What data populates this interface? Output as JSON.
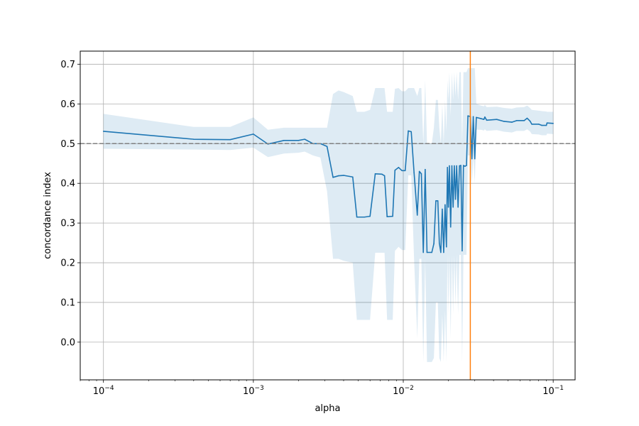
{
  "chart_data": {
    "type": "line",
    "title": "",
    "xlabel": "alpha",
    "ylabel": "concordance index",
    "xscale": "log",
    "xlim": [
      7e-05,
      0.14
    ],
    "ylim": [
      -0.095,
      0.733
    ],
    "grid": true,
    "x_ticks": [
      {
        "value": 0.0001,
        "base": "10",
        "exp": "−4"
      },
      {
        "value": 0.001,
        "base": "10",
        "exp": "−3"
      },
      {
        "value": 0.01,
        "base": "10",
        "exp": "−2"
      },
      {
        "value": 0.1,
        "base": "10",
        "exp": "−1"
      }
    ],
    "y_ticks": [
      {
        "value": 0.0,
        "label": "0.0"
      },
      {
        "value": 0.1,
        "label": "0.1"
      },
      {
        "value": 0.2,
        "label": "0.2"
      },
      {
        "value": 0.3,
        "label": "0.3"
      },
      {
        "value": 0.4,
        "label": "0.4"
      },
      {
        "value": 0.5,
        "label": "0.5"
      },
      {
        "value": 0.6,
        "label": "0.6"
      },
      {
        "value": 0.7,
        "label": "0.7"
      }
    ],
    "reference_lines": [
      {
        "orientation": "horizontal",
        "value": 0.5,
        "style": "dashed",
        "color": "#808080"
      },
      {
        "orientation": "vertical",
        "value": 0.028,
        "style": "solid",
        "color": "#ff7f0e"
      }
    ],
    "series": [
      {
        "color": "#1f77b4",
        "band_color": "#1f77b4",
        "points": [
          {
            "x": 0.0001,
            "y": 0.531,
            "lo": 0.487,
            "hi": 0.575
          },
          {
            "x": 0.0004,
            "y": 0.511,
            "lo": 0.485,
            "hi": 0.542
          },
          {
            "x": 0.0007,
            "y": 0.51,
            "lo": 0.484,
            "hi": 0.542
          },
          {
            "x": 0.001,
            "y": 0.524,
            "lo": 0.49,
            "hi": 0.566
          },
          {
            "x": 0.00125,
            "y": 0.499,
            "lo": 0.466,
            "hi": 0.535
          },
          {
            "x": 0.0016,
            "y": 0.508,
            "lo": 0.475,
            "hi": 0.54
          },
          {
            "x": 0.002,
            "y": 0.508,
            "lo": 0.477,
            "hi": 0.54
          },
          {
            "x": 0.0022,
            "y": 0.511,
            "lo": 0.48,
            "hi": 0.54
          },
          {
            "x": 0.0025,
            "y": 0.5,
            "lo": 0.47,
            "hi": 0.54
          },
          {
            "x": 0.0028,
            "y": 0.5,
            "lo": 0.465,
            "hi": 0.54
          },
          {
            "x": 0.0031,
            "y": 0.493,
            "lo": 0.38,
            "hi": 0.54
          },
          {
            "x": 0.0034,
            "y": 0.415,
            "lo": 0.21,
            "hi": 0.625
          },
          {
            "x": 0.0037,
            "y": 0.419,
            "lo": 0.21,
            "hi": 0.634
          },
          {
            "x": 0.004,
            "y": 0.42,
            "lo": 0.205,
            "hi": 0.63
          },
          {
            "x": 0.0046,
            "y": 0.416,
            "lo": 0.2,
            "hi": 0.62
          },
          {
            "x": 0.0049,
            "y": 0.315,
            "lo": 0.056,
            "hi": 0.58
          },
          {
            "x": 0.0055,
            "y": 0.315,
            "lo": 0.056,
            "hi": 0.58
          },
          {
            "x": 0.006,
            "y": 0.317,
            "lo": 0.056,
            "hi": 0.585
          },
          {
            "x": 0.0065,
            "y": 0.424,
            "lo": 0.225,
            "hi": 0.64
          },
          {
            "x": 0.0072,
            "y": 0.423,
            "lo": 0.225,
            "hi": 0.64
          },
          {
            "x": 0.0075,
            "y": 0.419,
            "lo": 0.225,
            "hi": 0.64
          },
          {
            "x": 0.0078,
            "y": 0.316,
            "lo": 0.056,
            "hi": 0.58
          },
          {
            "x": 0.0085,
            "y": 0.317,
            "lo": 0.056,
            "hi": 0.58
          },
          {
            "x": 0.0088,
            "y": 0.433,
            "lo": 0.23,
            "hi": 0.638
          },
          {
            "x": 0.0093,
            "y": 0.44,
            "lo": 0.24,
            "hi": 0.64
          },
          {
            "x": 0.0098,
            "y": 0.432,
            "lo": 0.232,
            "hi": 0.632
          },
          {
            "x": 0.0103,
            "y": 0.432,
            "lo": 0.232,
            "hi": 0.632
          },
          {
            "x": 0.0108,
            "y": 0.532,
            "lo": 0.42,
            "hi": 0.64
          },
          {
            "x": 0.0113,
            "y": 0.53,
            "lo": 0.42,
            "hi": 0.64
          },
          {
            "x": 0.0118,
            "y": 0.427,
            "lo": 0.21,
            "hi": 0.64
          },
          {
            "x": 0.0124,
            "y": 0.32,
            "lo": 0.01,
            "hi": 0.62
          },
          {
            "x": 0.0128,
            "y": 0.43,
            "lo": 0.21,
            "hi": 0.64
          },
          {
            "x": 0.0132,
            "y": 0.424,
            "lo": 0.21,
            "hi": 0.64
          },
          {
            "x": 0.0136,
            "y": 0.226,
            "lo": -0.05,
            "hi": 0.5
          },
          {
            "x": 0.014,
            "y": 0.435,
            "lo": 0.21,
            "hi": 0.66
          },
          {
            "x": 0.0144,
            "y": 0.226,
            "lo": -0.05,
            "hi": 0.5
          },
          {
            "x": 0.0155,
            "y": 0.226,
            "lo": -0.05,
            "hi": 0.5
          },
          {
            "x": 0.016,
            "y": 0.248,
            "lo": -0.04,
            "hi": 0.54
          },
          {
            "x": 0.0165,
            "y": 0.356,
            "lo": 0.1,
            "hi": 0.61
          },
          {
            "x": 0.017,
            "y": 0.356,
            "lo": 0.1,
            "hi": 0.61
          },
          {
            "x": 0.0174,
            "y": 0.249,
            "lo": -0.04,
            "hi": 0.54
          },
          {
            "x": 0.0178,
            "y": 0.226,
            "lo": -0.05,
            "hi": 0.5
          },
          {
            "x": 0.0182,
            "y": 0.335,
            "lo": 0.07,
            "hi": 0.6
          },
          {
            "x": 0.0186,
            "y": 0.226,
            "lo": -0.05,
            "hi": 0.5
          },
          {
            "x": 0.019,
            "y": 0.346,
            "lo": 0.08,
            "hi": 0.61
          },
          {
            "x": 0.0194,
            "y": 0.24,
            "lo": -0.05,
            "hi": 0.53
          },
          {
            "x": 0.0197,
            "y": 0.44,
            "lo": 0.22,
            "hi": 0.66
          },
          {
            "x": 0.02,
            "y": 0.34,
            "lo": 0.07,
            "hi": 0.61
          },
          {
            "x": 0.0203,
            "y": 0.444,
            "lo": 0.22,
            "hi": 0.68
          },
          {
            "x": 0.0207,
            "y": 0.29,
            "lo": 0.01,
            "hi": 0.57
          },
          {
            "x": 0.0211,
            "y": 0.444,
            "lo": 0.22,
            "hi": 0.68
          },
          {
            "x": 0.0215,
            "y": 0.34,
            "lo": 0.07,
            "hi": 0.61
          },
          {
            "x": 0.0219,
            "y": 0.444,
            "lo": 0.22,
            "hi": 0.68
          },
          {
            "x": 0.0223,
            "y": 0.36,
            "lo": 0.09,
            "hi": 0.62
          },
          {
            "x": 0.0227,
            "y": 0.444,
            "lo": 0.22,
            "hi": 0.68
          },
          {
            "x": 0.0232,
            "y": 0.34,
            "lo": 0.07,
            "hi": 0.61
          },
          {
            "x": 0.0237,
            "y": 0.444,
            "lo": 0.22,
            "hi": 0.68
          },
          {
            "x": 0.0242,
            "y": 0.445,
            "lo": 0.22,
            "hi": 0.68
          },
          {
            "x": 0.0247,
            "y": 0.23,
            "lo": -0.05,
            "hi": 0.5
          },
          {
            "x": 0.0252,
            "y": 0.445,
            "lo": 0.22,
            "hi": 0.68
          },
          {
            "x": 0.0258,
            "y": 0.443,
            "lo": 0.22,
            "hi": 0.68
          },
          {
            "x": 0.0264,
            "y": 0.445,
            "lo": 0.22,
            "hi": 0.68
          },
          {
            "x": 0.027,
            "y": 0.57,
            "lo": 0.47,
            "hi": 0.69
          },
          {
            "x": 0.028,
            "y": 0.568,
            "lo": 0.47,
            "hi": 0.69
          },
          {
            "x": 0.0287,
            "y": 0.462,
            "lo": 0.4,
            "hi": 0.69
          },
          {
            "x": 0.0293,
            "y": 0.568,
            "lo": 0.47,
            "hi": 0.69
          },
          {
            "x": 0.03,
            "y": 0.462,
            "lo": 0.4,
            "hi": 0.69
          },
          {
            "x": 0.0307,
            "y": 0.566,
            "lo": 0.535,
            "hi": 0.6
          },
          {
            "x": 0.033,
            "y": 0.563,
            "lo": 0.535,
            "hi": 0.596
          },
          {
            "x": 0.0345,
            "y": 0.561,
            "lo": 0.533,
            "hi": 0.594
          },
          {
            "x": 0.035,
            "y": 0.567,
            "lo": 0.536,
            "hi": 0.598
          },
          {
            "x": 0.036,
            "y": 0.559,
            "lo": 0.532,
            "hi": 0.592
          },
          {
            "x": 0.042,
            "y": 0.561,
            "lo": 0.534,
            "hi": 0.593
          },
          {
            "x": 0.047,
            "y": 0.556,
            "lo": 0.53,
            "hi": 0.59
          },
          {
            "x": 0.053,
            "y": 0.554,
            "lo": 0.528,
            "hi": 0.588
          },
          {
            "x": 0.057,
            "y": 0.558,
            "lo": 0.532,
            "hi": 0.591
          },
          {
            "x": 0.064,
            "y": 0.558,
            "lo": 0.532,
            "hi": 0.592
          },
          {
            "x": 0.067,
            "y": 0.564,
            "lo": 0.536,
            "hi": 0.596
          },
          {
            "x": 0.07,
            "y": 0.557,
            "lo": 0.531,
            "hi": 0.59
          },
          {
            "x": 0.072,
            "y": 0.549,
            "lo": 0.524,
            "hi": 0.585
          },
          {
            "x": 0.08,
            "y": 0.549,
            "lo": 0.523,
            "hi": 0.583
          },
          {
            "x": 0.084,
            "y": 0.546,
            "lo": 0.521,
            "hi": 0.582
          },
          {
            "x": 0.09,
            "y": 0.546,
            "lo": 0.521,
            "hi": 0.581
          },
          {
            "x": 0.091,
            "y": 0.552,
            "lo": 0.525,
            "hi": 0.58
          },
          {
            "x": 0.1,
            "y": 0.551,
            "lo": 0.524,
            "hi": 0.58
          }
        ]
      }
    ]
  }
}
